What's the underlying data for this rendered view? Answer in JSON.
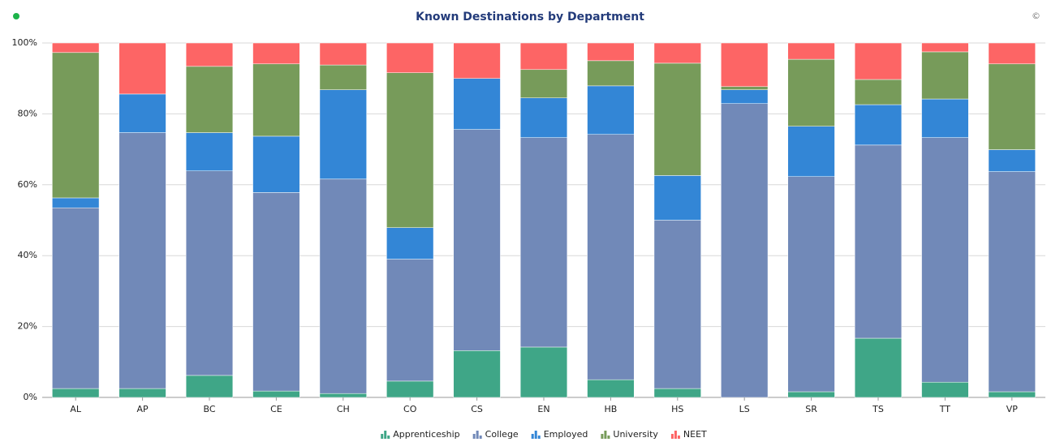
{
  "chart_data": {
    "type": "stacked_bar",
    "title": "Known Destinations by Department",
    "copyright": "©",
    "categories": [
      "AL",
      "AP",
      "BC",
      "CE",
      "CH",
      "CO",
      "CS",
      "EN",
      "HB",
      "HS",
      "LS",
      "SR",
      "TS",
      "TT",
      "VP"
    ],
    "series": [
      {
        "name": "Apprenticeship",
        "color": "#3fa687",
        "values": [
          2.5,
          2.5,
          6.2,
          1.8,
          1.1,
          4.6,
          13.2,
          14.2,
          5,
          2.5,
          0,
          1.6,
          16.7,
          4.3,
          1.6
        ]
      },
      {
        "name": "College",
        "color": "#7189b8",
        "values": [
          51,
          72.2,
          57.7,
          56,
          60.5,
          34.4,
          62.4,
          59.1,
          69.2,
          47.5,
          82.9,
          60.7,
          54.5,
          69,
          62.1
        ]
      },
      {
        "name": "Employed",
        "color": "#3386d6",
        "values": [
          2.8,
          10.9,
          10.8,
          15.9,
          25.2,
          8.9,
          14.4,
          11.2,
          13.7,
          12.6,
          3.9,
          14.2,
          11.4,
          10.9,
          6.2
        ]
      },
      {
        "name": "University",
        "color": "#779b5a",
        "values": [
          41,
          0,
          18.7,
          20.4,
          7,
          43.7,
          0,
          8,
          7.1,
          31.7,
          0.9,
          18.9,
          7.1,
          13.3,
          24.2
        ]
      },
      {
        "name": "NEET",
        "color": "#fd6565",
        "values": [
          2.7,
          14.4,
          6.6,
          5.9,
          6.2,
          8.4,
          10,
          7.5,
          5,
          5.7,
          12.3,
          4.6,
          10.3,
          2.5,
          5.9
        ]
      }
    ],
    "ylim": [
      0,
      100
    ],
    "yticks": [
      {
        "value": 0,
        "label": "0%"
      },
      {
        "value": 20,
        "label": "20%"
      },
      {
        "value": 40,
        "label": "40%"
      },
      {
        "value": 60,
        "label": "60%"
      },
      {
        "value": 80,
        "label": "80%"
      },
      {
        "value": 100,
        "label": "100%"
      }
    ],
    "grid": true
  }
}
